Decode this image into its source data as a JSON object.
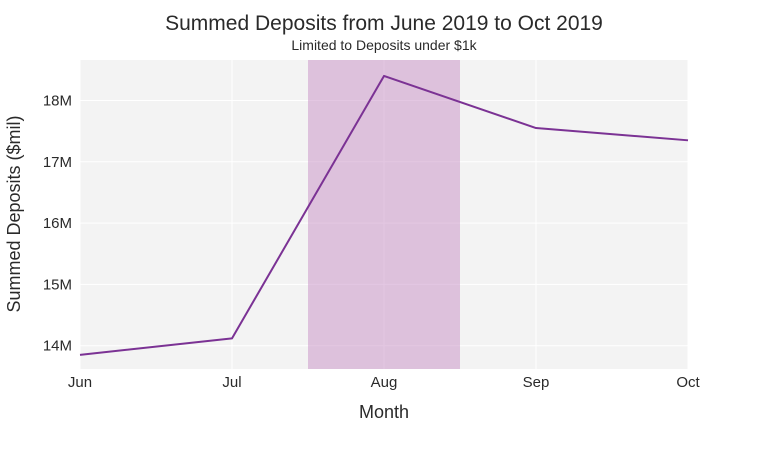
{
  "chart_data": {
    "type": "line",
    "title": "Summed Deposits from June 2019 to Oct 2019",
    "subtitle": "Limited to Deposits under $1k",
    "xlabel": "Month",
    "ylabel": "Summed Deposits ($mil)",
    "categories": [
      "Jun",
      "Jul",
      "Aug",
      "Sep",
      "Oct"
    ],
    "series": [
      {
        "values": [
          13850000,
          14120000,
          18400000,
          17550000,
          17350000
        ]
      }
    ],
    "y_ticks": [
      {
        "value": 14000000,
        "label": "14M"
      },
      {
        "value": 15000000,
        "label": "15M"
      },
      {
        "value": 16000000,
        "label": "16M"
      },
      {
        "value": 17000000,
        "label": "17M"
      },
      {
        "value": 18000000,
        "label": "18M"
      }
    ],
    "ylim": [
      13620000,
      18660000
    ],
    "highlight_band": {
      "from_index": 1.5,
      "to_index": 2.5
    },
    "grid": true,
    "colors": {
      "line": "#7b3294",
      "band": "#c88fc6",
      "plot_background": "#f3f3f3",
      "grid": "#ffffff",
      "text": "#2a2a2a"
    }
  }
}
